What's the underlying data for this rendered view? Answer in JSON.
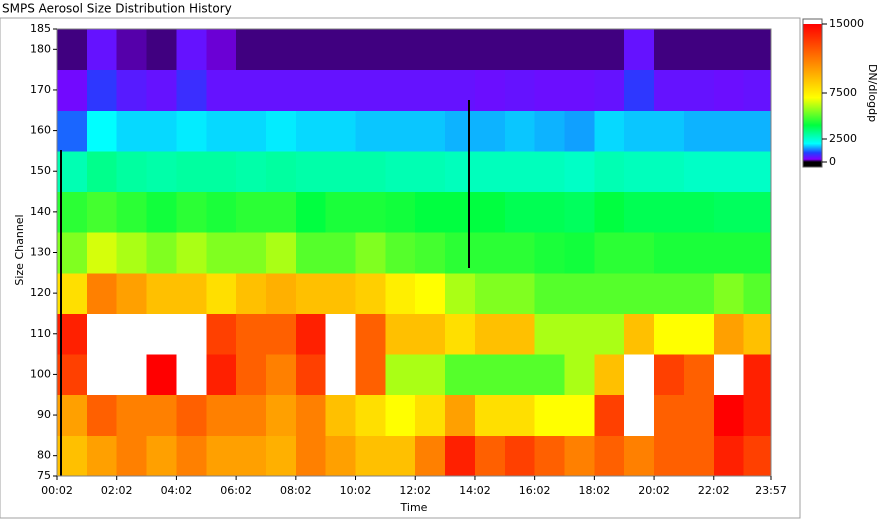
{
  "chart_data": {
    "type": "heatmap",
    "title": "SMPS Aerosol Size Distribution History",
    "x_label": "Time",
    "y_label": "Size Channel",
    "colorbar_label": "DN/dlogdp",
    "xbins": [
      2,
      62,
      122,
      182,
      242,
      302,
      362,
      422,
      482,
      542,
      602,
      662,
      722,
      782,
      842,
      902,
      962,
      1022,
      1082,
      1142,
      1202,
      1262,
      1322,
      1382,
      1437
    ],
    "ybins": [
      75,
      85,
      95,
      105,
      115,
      125,
      135,
      145,
      155,
      165,
      175,
      185
    ],
    "z": [
      [
        9000,
        10000,
        11000,
        10000,
        11000,
        10000,
        10000,
        9500,
        11000,
        10000,
        9000,
        9000,
        11000,
        14000,
        12000,
        13000,
        12000,
        11000,
        12000,
        11000,
        12000,
        12000,
        14000,
        13000
      ],
      [
        10000,
        12000,
        11000,
        11000,
        12000,
        11000,
        11000,
        10000,
        11000,
        9000,
        8000,
        7000,
        8000,
        10000,
        8000,
        8000,
        7000,
        7000,
        13000,
        16000,
        12000,
        12000,
        15000,
        14000
      ],
      [
        13000,
        16000,
        16000,
        15000,
        16000,
        14000,
        12000,
        11000,
        13000,
        16000,
        12000,
        6000,
        6000,
        5000,
        5000,
        5000,
        5000,
        6000,
        9000,
        16000,
        13000,
        12000,
        16000,
        14000
      ],
      [
        14000,
        16000,
        16000,
        16000,
        16000,
        13000,
        12000,
        12000,
        14000,
        16000,
        12000,
        9000,
        9000,
        8000,
        9000,
        9000,
        6000,
        6000,
        6000,
        9000,
        7000,
        7000,
        10000,
        9000
      ],
      [
        8000,
        11000,
        10000,
        9000,
        9000,
        8000,
        9000,
        9500,
        9000,
        9000,
        8500,
        7500,
        7000,
        6000,
        5500,
        5500,
        5000,
        5000,
        5000,
        5000,
        5000,
        5000,
        5500,
        5000
      ],
      [
        5500,
        6500,
        6000,
        5500,
        6000,
        5500,
        5500,
        6000,
        5000,
        5000,
        5500,
        5000,
        4800,
        4500,
        4500,
        4500,
        4300,
        4200,
        4500,
        4500,
        4300,
        4300,
        4300,
        4300
      ],
      [
        4500,
        4800,
        4500,
        4200,
        4500,
        4300,
        4500,
        4500,
        4000,
        4300,
        4300,
        4200,
        4000,
        4000,
        4000,
        3800,
        3800,
        3700,
        4000,
        3800,
        3800,
        3800,
        3700,
        3700
      ],
      [
        2800,
        3200,
        3000,
        2900,
        3000,
        3000,
        2900,
        3000,
        2900,
        2900,
        2900,
        2800,
        2800,
        2700,
        2700,
        2700,
        2700,
        2600,
        2800,
        2700,
        2700,
        2600,
        2600,
        2600
      ],
      [
        1200,
        2000,
        1800,
        1800,
        1900,
        1800,
        1800,
        1900,
        1800,
        1800,
        1700,
        1700,
        1700,
        1600,
        1600,
        1700,
        1600,
        1500,
        1800,
        1700,
        1700,
        1600,
        1600,
        1600
      ],
      [
        400,
        900,
        600,
        500,
        800,
        500,
        500,
        500,
        500,
        500,
        500,
        500,
        500,
        500,
        450,
        500,
        450,
        450,
        500,
        900,
        500,
        500,
        450,
        500
      ],
      [
        150,
        500,
        200,
        150,
        500,
        250,
        150,
        150,
        150,
        150,
        150,
        150,
        150,
        150,
        150,
        150,
        150,
        150,
        150,
        500,
        150,
        150,
        150,
        150
      ]
    ],
    "xlim": [
      2,
      1437
    ],
    "xticks": [
      {
        "value": 2,
        "label": "00:02"
      },
      {
        "value": 122,
        "label": "02:02"
      },
      {
        "value": 242,
        "label": "04:02"
      },
      {
        "value": 362,
        "label": "06:02"
      },
      {
        "value": 482,
        "label": "08:02"
      },
      {
        "value": 602,
        "label": "10:02"
      },
      {
        "value": 722,
        "label": "12:02"
      },
      {
        "value": 842,
        "label": "14:02"
      },
      {
        "value": 962,
        "label": "16:02"
      },
      {
        "value": 1082,
        "label": "18:02"
      },
      {
        "value": 1202,
        "label": "20:02"
      },
      {
        "value": 1322,
        "label": "22:02"
      },
      {
        "value": 1437,
        "label": "23:57"
      }
    ],
    "ylim": [
      75,
      185
    ],
    "yticks": [
      75,
      80,
      90,
      100,
      110,
      120,
      130,
      140,
      150,
      160,
      170,
      180,
      185
    ],
    "clim": [
      0,
      15000
    ],
    "cticks": [
      0,
      2500,
      7500,
      15000
    ],
    "colorscale": [
      [
        0,
        "#000000"
      ],
      [
        300,
        "#8000ff"
      ],
      [
        1000,
        "#2040ff"
      ],
      [
        2000,
        "#00ffff"
      ],
      [
        4000,
        "#00ff40"
      ],
      [
        7000,
        "#ffff00"
      ],
      [
        11000,
        "#ff8000"
      ],
      [
        15000,
        "#ff0000"
      ]
    ],
    "over_color": "#ffffff"
  }
}
